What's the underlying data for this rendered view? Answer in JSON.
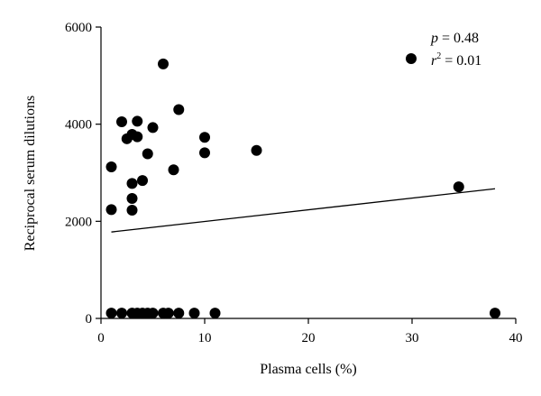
{
  "chart_data": {
    "type": "scatter",
    "xlabel": "Plasma cells (%)",
    "ylabel": "Reciprocal serum dilutions",
    "xlim": [
      0,
      40
    ],
    "ylim": [
      0,
      6000
    ],
    "x_ticks": [
      "0",
      "10",
      "20",
      "30",
      "40"
    ],
    "y_ticks": [
      "0",
      "2000",
      "4000",
      "6000"
    ],
    "grid": false,
    "legend_position": "top-right",
    "stats": {
      "p_symbol": "p",
      "p_text": " = 0.48",
      "r_symbol": "r",
      "r_exp": "2",
      "r_text": " = 0.01"
    },
    "points": [
      {
        "x": 1.0,
        "y": 3120
      },
      {
        "x": 1.0,
        "y": 2240
      },
      {
        "x": 2.0,
        "y": 4050
      },
      {
        "x": 2.5,
        "y": 3700
      },
      {
        "x": 3.0,
        "y": 3790
      },
      {
        "x": 3.0,
        "y": 2780
      },
      {
        "x": 3.0,
        "y": 2470
      },
      {
        "x": 3.0,
        "y": 2230
      },
      {
        "x": 3.5,
        "y": 4060
      },
      {
        "x": 3.5,
        "y": 3740
      },
      {
        "x": 4.0,
        "y": 2840
      },
      {
        "x": 4.5,
        "y": 3390
      },
      {
        "x": 5.0,
        "y": 3930
      },
      {
        "x": 6.0,
        "y": 5240
      },
      {
        "x": 7.0,
        "y": 3060
      },
      {
        "x": 7.5,
        "y": 4300
      },
      {
        "x": 10.0,
        "y": 3730
      },
      {
        "x": 10.0,
        "y": 3410
      },
      {
        "x": 15.0,
        "y": 3460
      },
      {
        "x": 34.5,
        "y": 2710
      },
      {
        "x": 1.0,
        "y": 110
      },
      {
        "x": 2.0,
        "y": 110
      },
      {
        "x": 3.0,
        "y": 110
      },
      {
        "x": 3.5,
        "y": 110
      },
      {
        "x": 4.0,
        "y": 110
      },
      {
        "x": 4.5,
        "y": 110
      },
      {
        "x": 5.0,
        "y": 110
      },
      {
        "x": 6.0,
        "y": 110
      },
      {
        "x": 6.5,
        "y": 110
      },
      {
        "x": 7.5,
        "y": 110
      },
      {
        "x": 9.0,
        "y": 110
      },
      {
        "x": 11.0,
        "y": 110
      },
      {
        "x": 38.0,
        "y": 110
      }
    ],
    "regression": {
      "x": [
        1,
        38
      ],
      "y": [
        1780,
        2670
      ]
    }
  }
}
